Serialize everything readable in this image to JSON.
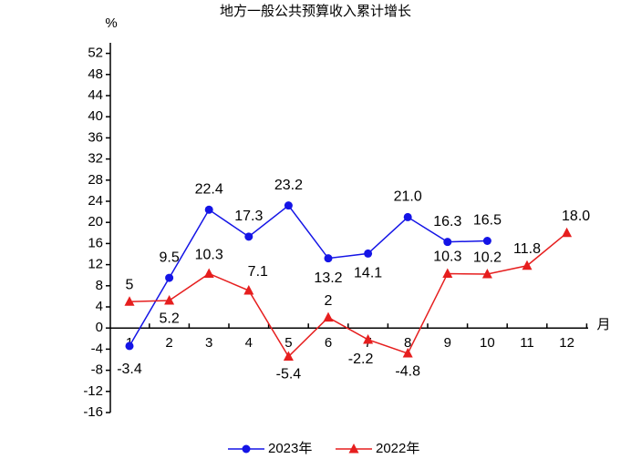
{
  "chart_data": {
    "type": "line",
    "title": "地方一般公共预算收入累计增长",
    "y_label": "%",
    "x_label": "月",
    "categories": [
      "1",
      "2",
      "3",
      "4",
      "5",
      "6",
      "7",
      "8",
      "9",
      "10",
      "11",
      "12"
    ],
    "series": [
      {
        "name": "2023年",
        "color": "#1414e6",
        "marker": "circle",
        "values": [
          -3.4,
          9.5,
          22.4,
          17.3,
          23.2,
          13.2,
          14.1,
          21.0,
          16.3,
          16.5,
          null,
          null
        ],
        "value_labels": [
          "-3.4",
          "9.5",
          "22.4",
          "17.3",
          "23.2",
          "13.2",
          "14.1",
          "21.0",
          "16.3",
          "16.5",
          null,
          null
        ]
      },
      {
        "name": "2022年",
        "color": "#e61e1e",
        "marker": "triangle",
        "values": [
          5,
          5.2,
          10.3,
          7.1,
          -5.4,
          2,
          -2.2,
          -4.8,
          10.3,
          10.2,
          11.8,
          18.0
        ],
        "value_labels": [
          "5",
          "5.2",
          "10.3",
          "7.1",
          "-5.4",
          "2",
          "-2.2",
          "-4.8",
          "10.3",
          "10.2",
          "11.8",
          "18.0"
        ]
      }
    ],
    "ylim": [
      -16,
      54
    ],
    "yticks": [
      -16,
      -12,
      -8,
      -4,
      0,
      4,
      8,
      12,
      16,
      20,
      24,
      28,
      32,
      36,
      40,
      44,
      48,
      52
    ],
    "grid": false,
    "legend": "bottom"
  }
}
